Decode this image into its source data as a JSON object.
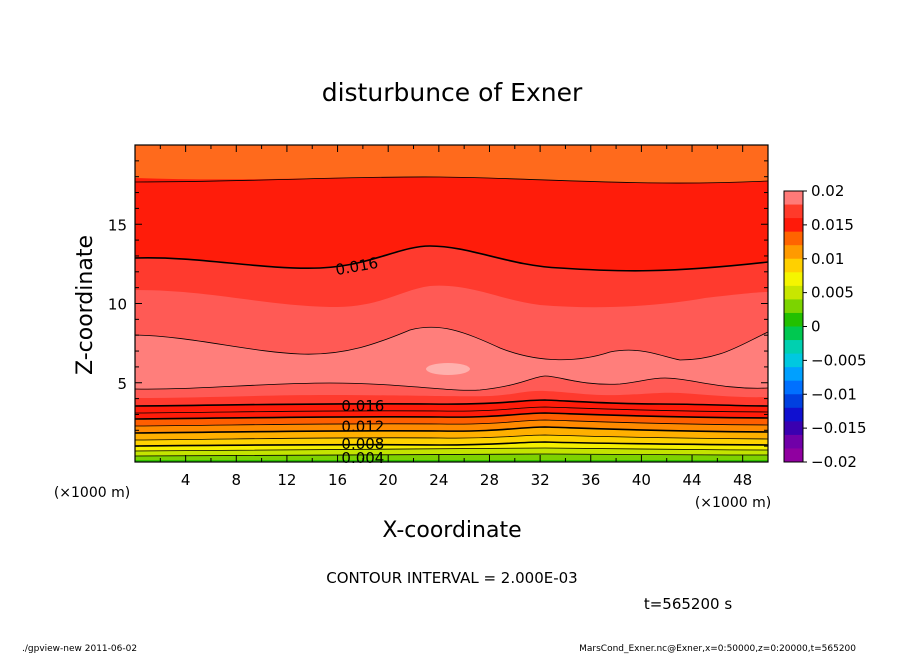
{
  "chart_data": {
    "type": "contour",
    "title": "disturbunce of Exner",
    "xlabel": "X-coordinate",
    "ylabel": "Z-coordinate",
    "x_unit": "(×1000 m)",
    "x_unit_right": "(×1000 m)",
    "xlim": [
      0,
      50
    ],
    "ylim": [
      0,
      20
    ],
    "x_ticks": [
      "4",
      "8",
      "12",
      "16",
      "20",
      "24",
      "28",
      "32",
      "36",
      "40",
      "44",
      "48"
    ],
    "y_ticks": [
      "5",
      "10",
      "15"
    ],
    "colorbar_ticks": [
      "0.02",
      "0.015",
      "0.01",
      "0.005",
      "0",
      "−0.005",
      "−0.01",
      "−0.015",
      "−0.02"
    ],
    "colorbar_colors": [
      "#ff7a78",
      "#ff3a2a",
      "#ff1a0a",
      "#ff6400",
      "#ff9a00",
      "#ffd000",
      "#f5f500",
      "#c8e600",
      "#7cd400",
      "#22c000",
      "#00c850",
      "#00d0b0",
      "#00c8e0",
      "#00a0ff",
      "#0070ff",
      "#0040e0",
      "#1010d0",
      "#3a00b0",
      "#7000a8",
      "#9000a0"
    ],
    "contour_labels": [
      {
        "text": "0.016",
        "level": 0.016,
        "x": 17.5,
        "z": 12.4,
        "angle": -10
      },
      {
        "text": "0.016",
        "level": 0.016,
        "x": 18.0,
        "z": 3.6,
        "angle": 0
      },
      {
        "text": "0.012",
        "level": 0.012,
        "x": 18.0,
        "z": 2.3,
        "angle": 0
      },
      {
        "text": "0.008",
        "level": 0.008,
        "x": 18.0,
        "z": 1.2,
        "angle": 0
      },
      {
        "text": "0.004",
        "level": 0.004,
        "x": 18.0,
        "z": 0.3,
        "angle": 0
      }
    ],
    "contour_interval_text": "CONTOUR INTERVAL = 2.000E-03",
    "time_text": "t=565200 s"
  },
  "footer": {
    "left": "./gpview-new   2011-06-02",
    "right": "MarsCond_Exner.nc@Exner,x=0:50000,z=0:20000,t=565200"
  }
}
